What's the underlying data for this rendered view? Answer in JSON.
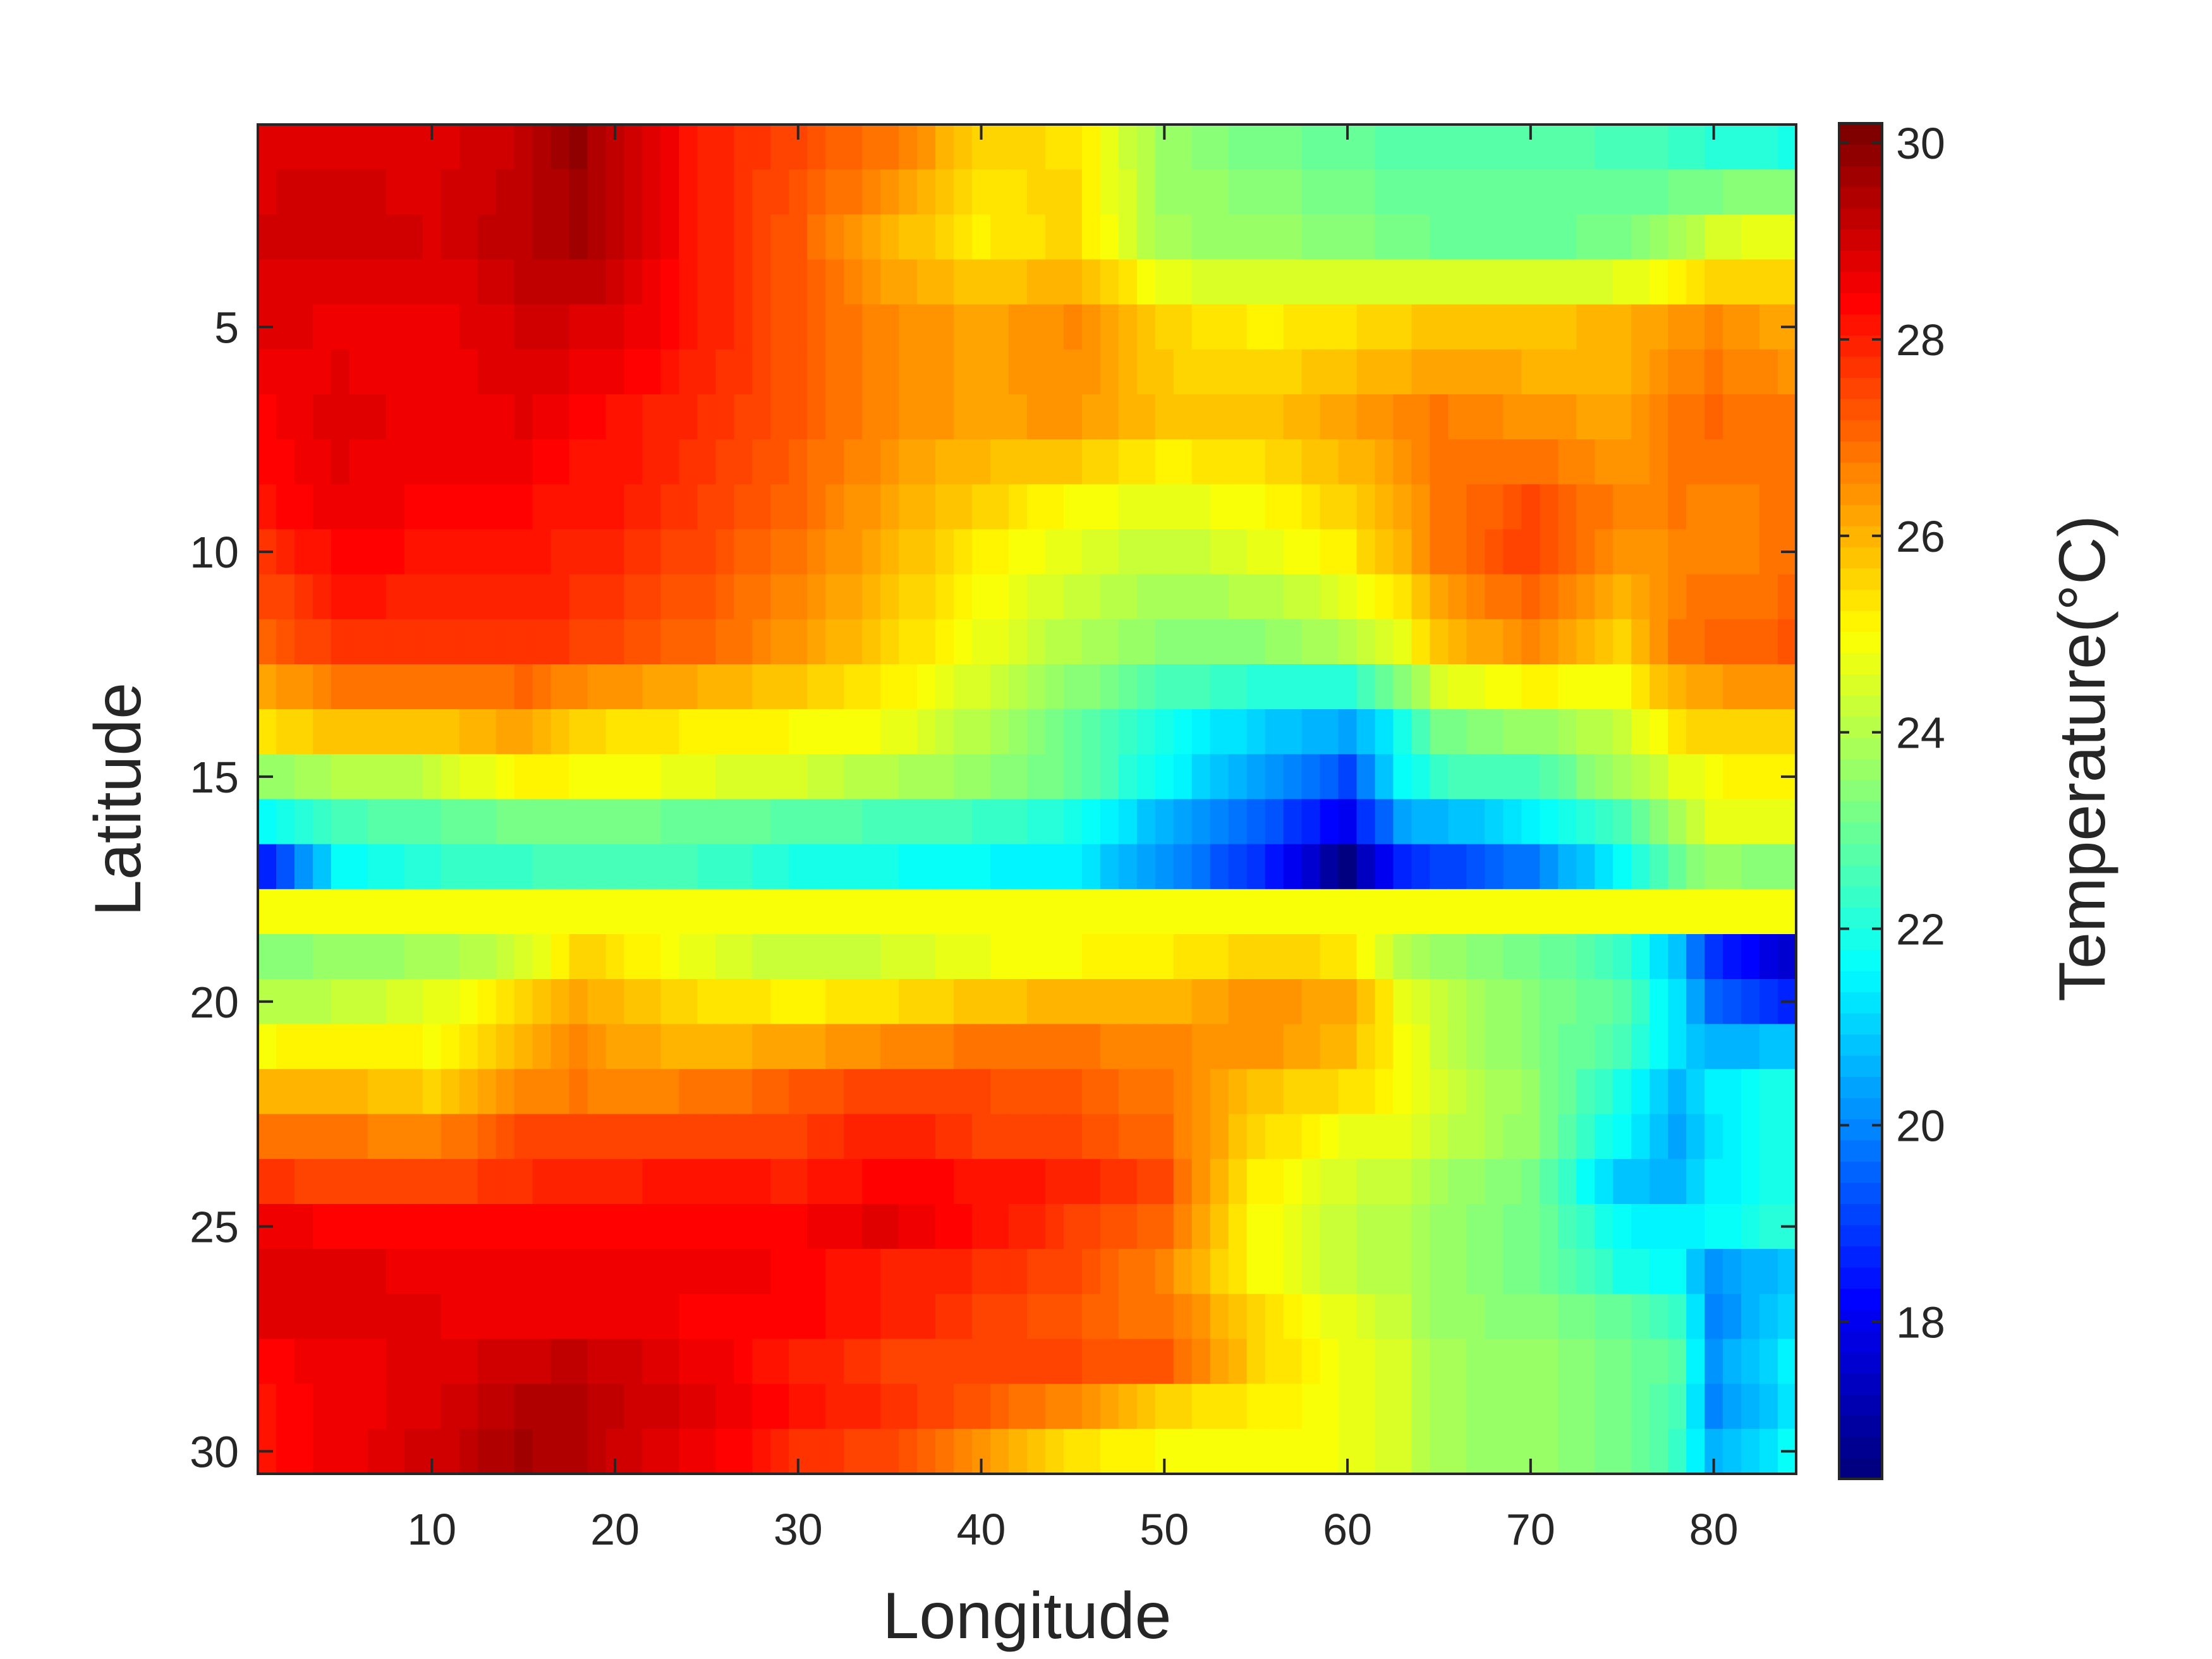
{
  "chart_data": {
    "type": "heatmap",
    "xlabel": "Longitude",
    "ylabel": "Latitude",
    "colorbar_label": "Temperature(°C)",
    "colormap": "jet",
    "xlim": [
      0.5,
      84.5
    ],
    "ylim": [
      0.5,
      30.5
    ],
    "y_direction": "reversed (1 at top, 30 at bottom)",
    "grid": false,
    "legend": "colorbar at right",
    "clim": [
      16.4,
      30.2
    ],
    "xticks": [
      10,
      20,
      30,
      40,
      50,
      60,
      70,
      80
    ],
    "xtick_labels": [
      "10",
      "20",
      "30",
      "40",
      "50",
      "60",
      "70",
      "80"
    ],
    "yticks": [
      5,
      10,
      15,
      20,
      25,
      30
    ],
    "ytick_labels": [
      "5",
      "10",
      "15",
      "20",
      "25",
      "30"
    ],
    "cticks": [
      18,
      20,
      22,
      24,
      26,
      28,
      30
    ],
    "ctick_labels": [
      "18",
      "20",
      "22",
      "24",
      "26",
      "28",
      "30"
    ],
    "grid_size": {
      "longitude": 84,
      "latitude": 30
    },
    "longitude_knots": [
      1,
      5,
      10,
      15,
      18,
      20,
      25,
      30,
      35,
      40,
      45,
      50,
      55,
      60,
      63,
      65,
      70,
      75,
      78,
      80,
      84
    ],
    "latitude_profiles": [
      {
        "latitude": 1,
        "temps": [
          28.8,
          28.8,
          28.8,
          29.2,
          29.8,
          29.2,
          28.0,
          27.4,
          26.8,
          25.6,
          25.4,
          23.6,
          23.2,
          23.0,
          22.8,
          22.8,
          22.8,
          22.6,
          22.4,
          22.2,
          22.0
        ]
      },
      {
        "latitude": 3,
        "temps": [
          29.0,
          29.1,
          28.9,
          29.3,
          29.6,
          29.2,
          28.0,
          27.2,
          26.0,
          25.2,
          25.6,
          23.8,
          23.6,
          23.4,
          23.2,
          23.0,
          23.0,
          23.2,
          23.8,
          24.4,
          24.8
        ]
      },
      {
        "latitude": 5,
        "temps": [
          28.8,
          28.6,
          28.5,
          29.0,
          28.9,
          28.8,
          28.0,
          27.2,
          26.6,
          26.2,
          26.6,
          25.6,
          25.2,
          25.4,
          25.6,
          25.8,
          25.8,
          26.0,
          26.4,
          26.6,
          26.2
        ]
      },
      {
        "latitude": 7,
        "temps": [
          28.4,
          28.8,
          28.6,
          28.7,
          28.4,
          28.2,
          27.8,
          27.2,
          26.6,
          26.2,
          26.4,
          25.8,
          25.8,
          26.2,
          26.6,
          26.8,
          26.4,
          26.2,
          26.8,
          27.0,
          26.8
        ]
      },
      {
        "latitude": 9,
        "temps": [
          28.2,
          28.6,
          28.4,
          28.3,
          28.1,
          28.1,
          27.6,
          27.0,
          26.2,
          25.6,
          25.0,
          24.6,
          25.0,
          25.6,
          26.2,
          26.8,
          27.4,
          26.6,
          26.8,
          26.6,
          26.8
        ]
      },
      {
        "latitude": 10,
        "temps": [
          27.8,
          28.4,
          28.2,
          28.1,
          28.0,
          27.9,
          27.4,
          26.8,
          26.0,
          25.2,
          24.6,
          24.2,
          24.6,
          25.2,
          26.0,
          26.8,
          27.6,
          26.4,
          26.6,
          26.6,
          26.8
        ]
      },
      {
        "latitude": 12,
        "temps": [
          27.0,
          27.8,
          27.8,
          27.8,
          27.6,
          27.4,
          27.0,
          26.4,
          25.6,
          24.8,
          24.0,
          23.4,
          23.4,
          24.0,
          24.8,
          25.8,
          26.6,
          25.6,
          26.8,
          27.0,
          27.2
        ]
      },
      {
        "latitude": 14,
        "temps": [
          25.4,
          25.8,
          25.8,
          26.2,
          25.6,
          25.4,
          25.2,
          25.0,
          24.8,
          24.0,
          23.0,
          21.8,
          21.0,
          20.4,
          21.8,
          23.2,
          23.6,
          24.2,
          25.4,
          25.6,
          25.6
        ]
      },
      {
        "latitude": 15,
        "temps": [
          23.6,
          24.0,
          24.2,
          25.2,
          25.0,
          25.0,
          24.6,
          24.4,
          24.0,
          23.6,
          23.0,
          21.6,
          20.4,
          19.2,
          21.6,
          22.4,
          22.6,
          23.8,
          24.6,
          25.0,
          25.2
        ]
      },
      {
        "latitude": 16,
        "temps": [
          21.6,
          22.6,
          22.8,
          23.2,
          23.2,
          23.2,
          23.0,
          22.8,
          22.6,
          22.4,
          22.0,
          20.6,
          19.6,
          18.0,
          20.4,
          20.6,
          21.4,
          22.6,
          23.8,
          24.6,
          24.6
        ]
      },
      {
        "latitude": 17,
        "temps": [
          18.6,
          21.6,
          22.2,
          22.4,
          22.6,
          22.6,
          22.4,
          22.0,
          21.8,
          21.6,
          21.4,
          20.2,
          18.8,
          16.6,
          18.6,
          19.0,
          19.8,
          21.6,
          23.0,
          23.6,
          23.4
        ]
      },
      {
        "latitude": 18,
        "temps": [
          25.0,
          25.0,
          25.0,
          25.0,
          25.0,
          25.0,
          25.0,
          25.0,
          25.0,
          25.0,
          25.0,
          25.0,
          25.0,
          25.0,
          25.0,
          25.0,
          25.0,
          25.0,
          25.0,
          25.0,
          25.0
        ]
      },
      {
        "latitude": 19,
        "temps": [
          23.4,
          23.6,
          23.8,
          24.4,
          25.6,
          25.4,
          24.6,
          24.2,
          24.4,
          24.8,
          25.0,
          25.2,
          25.6,
          25.4,
          24.0,
          23.6,
          23.2,
          22.4,
          20.8,
          18.8,
          17.6
        ]
      },
      {
        "latitude": 20,
        "temps": [
          24.0,
          24.2,
          24.6,
          25.6,
          26.2,
          26.0,
          25.4,
          25.2,
          25.4,
          25.8,
          26.0,
          26.0,
          26.4,
          26.2,
          24.8,
          24.2,
          23.4,
          22.8,
          21.2,
          19.6,
          18.6
        ]
      },
      {
        "latitude": 21,
        "temps": [
          25.0,
          25.2,
          25.0,
          26.0,
          26.6,
          26.2,
          26.0,
          26.2,
          26.6,
          26.8,
          26.8,
          26.6,
          26.4,
          26.0,
          25.0,
          24.2,
          23.4,
          22.6,
          21.2,
          20.6,
          20.8
        ]
      },
      {
        "latitude": 22,
        "temps": [
          26.0,
          26.0,
          25.6,
          26.6,
          26.8,
          26.6,
          26.8,
          27.2,
          27.6,
          27.4,
          27.2,
          26.8,
          25.8,
          25.4,
          25.0,
          24.4,
          23.6,
          22.0,
          20.6,
          21.4,
          22.0
        ]
      },
      {
        "latitude": 23,
        "temps": [
          26.8,
          26.8,
          26.6,
          27.4,
          27.6,
          27.4,
          27.6,
          27.6,
          28.0,
          27.6,
          27.4,
          27.0,
          25.6,
          24.8,
          24.6,
          24.2,
          23.6,
          21.6,
          20.4,
          21.2,
          22.0
        ]
      },
      {
        "latitude": 24,
        "temps": [
          27.8,
          27.4,
          27.4,
          27.8,
          28.0,
          28.0,
          28.2,
          28.0,
          28.4,
          28.2,
          28.0,
          27.4,
          25.2,
          24.4,
          24.2,
          23.8,
          23.2,
          20.8,
          20.6,
          21.4,
          22.0
        ]
      },
      {
        "latitude": 25,
        "temps": [
          28.6,
          28.4,
          28.4,
          28.4,
          28.4,
          28.4,
          28.4,
          28.4,
          28.8,
          28.2,
          27.6,
          27.0,
          25.0,
          24.2,
          24.0,
          23.6,
          23.2,
          21.6,
          21.4,
          21.6,
          22.2
        ]
      },
      {
        "latitude": 26,
        "temps": [
          28.8,
          28.8,
          28.6,
          28.6,
          28.6,
          28.6,
          28.6,
          28.4,
          28.0,
          27.8,
          27.4,
          26.6,
          25.0,
          24.2,
          24.0,
          23.6,
          23.2,
          22.0,
          21.6,
          20.2,
          20.8
        ]
      },
      {
        "latitude": 27,
        "temps": [
          28.8,
          28.8,
          28.7,
          28.6,
          28.6,
          28.6,
          28.4,
          28.4,
          28.0,
          27.6,
          27.2,
          26.8,
          25.6,
          24.6,
          24.2,
          23.6,
          23.4,
          23.0,
          22.4,
          20.0,
          21.0
        ]
      },
      {
        "latitude": 28,
        "temps": [
          28.4,
          28.6,
          28.8,
          29.0,
          29.2,
          29.0,
          28.6,
          28.0,
          27.6,
          27.4,
          27.4,
          27.2,
          25.6,
          24.8,
          24.4,
          23.8,
          23.6,
          23.2,
          22.8,
          20.2,
          21.4
        ]
      },
      {
        "latitude": 29,
        "temps": [
          28.2,
          28.6,
          28.8,
          29.4,
          29.4,
          29.2,
          28.8,
          28.2,
          27.8,
          27.2,
          26.6,
          25.6,
          25.2,
          24.8,
          24.4,
          23.8,
          23.6,
          23.2,
          22.6,
          20.0,
          21.2
        ]
      },
      {
        "latitude": 30,
        "temps": [
          28.2,
          28.6,
          29.0,
          29.6,
          29.4,
          29.0,
          28.6,
          27.8,
          27.4,
          26.4,
          25.4,
          25.0,
          25.0,
          24.8,
          24.4,
          23.8,
          23.6,
          23.2,
          22.4,
          20.6,
          21.6
        ]
      }
    ]
  }
}
